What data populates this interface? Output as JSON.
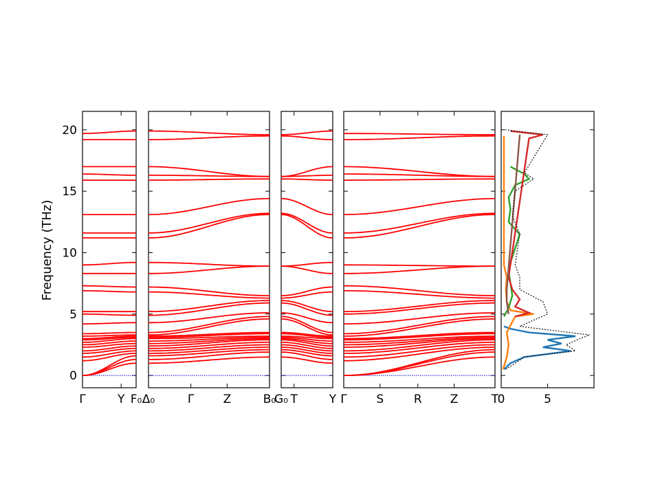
{
  "chart_data": {
    "type": "line",
    "title": "",
    "ylabel": "Frequency (THz)",
    "ylim": [
      -1,
      21.5
    ],
    "yticks": [
      0,
      5,
      10,
      15,
      20
    ],
    "band_color": "#ff0000",
    "zero_line_color": "#0000cc",
    "panels": [
      {
        "xlim": [
          0,
          1
        ],
        "tick_labels": [
          {
            "x": 0,
            "label": "Γ"
          },
          {
            "x": 0.72,
            "label": "Y"
          },
          {
            "x": 1,
            "label": "F₀"
          }
        ],
        "bands_at_start": [
          0.0,
          0.0,
          0.0,
          1.2,
          1.5,
          1.8,
          2.0,
          2.3,
          2.5,
          2.7,
          2.9,
          3.0,
          3.2,
          3.4,
          4.2,
          5.0,
          5.2,
          6.9,
          7.3,
          8.3,
          9.0,
          11.2,
          11.6,
          13.1,
          15.9,
          16.4,
          17.0,
          19.2,
          19.7
        ],
        "bands_at_end": [
          1.0,
          1.3,
          1.6,
          1.8,
          2.0,
          2.2,
          2.4,
          2.6,
          2.8,
          3.0,
          3.1,
          3.2,
          3.3,
          3.5,
          4.3,
          4.9,
          5.2,
          6.8,
          7.2,
          8.3,
          9.2,
          11.2,
          11.6,
          13.1,
          15.9,
          16.3,
          17.0,
          19.2,
          19.9
        ]
      },
      {
        "xlim": [
          0,
          1
        ],
        "tick_labels": [
          {
            "x": 0,
            "label": "Δ₀"
          },
          {
            "x": 0.35,
            "label": "Γ"
          },
          {
            "x": 0.65,
            "label": "Z"
          },
          {
            "x": 1,
            "label": "B₀"
          }
        ],
        "bands_at_start": [
          1.0,
          1.3,
          1.6,
          1.8,
          2.0,
          2.2,
          2.4,
          2.6,
          2.8,
          3.0,
          3.1,
          3.2,
          3.3,
          3.5,
          4.3,
          4.9,
          5.2,
          6.8,
          7.2,
          8.3,
          9.2,
          11.2,
          11.6,
          13.1,
          15.9,
          16.3,
          17.0,
          19.2,
          19.9
        ],
        "bands_at_end": [
          1.5,
          1.9,
          2.1,
          2.3,
          2.5,
          2.7,
          2.9,
          3.0,
          3.1,
          3.2,
          3.4,
          3.5,
          4.6,
          4.8,
          5.1,
          5.9,
          6.1,
          6.3,
          6.5,
          8.9,
          8.9,
          13.1,
          13.2,
          14.4,
          16.0,
          16.2,
          16.2,
          19.5,
          19.6
        ]
      },
      {
        "xlim": [
          0,
          1
        ],
        "tick_labels": [
          {
            "x": 0,
            "label": "G₀"
          },
          {
            "x": 0.25,
            "label": "T"
          },
          {
            "x": 1,
            "label": "Y"
          }
        ],
        "bands_at_start": [
          1.5,
          1.9,
          2.1,
          2.3,
          2.5,
          2.7,
          2.9,
          3.0,
          3.1,
          3.2,
          3.4,
          3.5,
          4.6,
          4.8,
          5.1,
          5.9,
          6.1,
          6.3,
          6.5,
          8.9,
          8.9,
          13.1,
          13.2,
          14.4,
          16.0,
          16.2,
          16.2,
          19.5,
          19.6
        ],
        "bands_at_end": [
          1.0,
          1.3,
          1.6,
          1.8,
          2.0,
          2.2,
          2.4,
          2.6,
          2.8,
          3.0,
          3.1,
          3.2,
          3.3,
          3.5,
          4.3,
          4.9,
          5.2,
          6.8,
          7.2,
          8.3,
          9.2,
          11.2,
          11.6,
          13.1,
          15.9,
          16.3,
          17.0,
          19.2,
          19.9
        ]
      },
      {
        "xlim": [
          0,
          1
        ],
        "tick_labels": [
          {
            "x": 0,
            "label": "Γ"
          },
          {
            "x": 0.24,
            "label": "S"
          },
          {
            "x": 0.49,
            "label": "R"
          },
          {
            "x": 0.73,
            "label": "Z"
          },
          {
            "x": 1,
            "label": "T"
          }
        ],
        "bands_at_start": [
          0.0,
          0.0,
          0.0,
          1.2,
          1.5,
          1.8,
          2.0,
          2.3,
          2.5,
          2.7,
          2.9,
          3.0,
          3.2,
          3.4,
          4.2,
          5.0,
          5.2,
          6.9,
          7.3,
          8.3,
          9.0,
          11.2,
          11.6,
          13.1,
          15.9,
          16.4,
          17.0,
          19.2,
          19.7
        ],
        "bands_at_end": [
          1.5,
          1.9,
          2.1,
          2.3,
          2.5,
          2.7,
          2.9,
          3.0,
          3.1,
          3.2,
          3.4,
          3.5,
          4.6,
          4.8,
          5.1,
          5.9,
          6.1,
          6.3,
          6.5,
          8.9,
          8.9,
          13.1,
          13.2,
          14.4,
          16.0,
          16.2,
          16.2,
          19.5,
          19.6
        ]
      }
    ],
    "dos_panel": {
      "xlim": [
        0,
        10
      ],
      "xticks": [
        0,
        5
      ],
      "series": [
        {
          "color": "#1f77b4",
          "freq": [
            0.5,
            1.0,
            1.5,
            2.0,
            2.3,
            2.6,
            2.9,
            3.2,
            3.5,
            3.8,
            4.0
          ],
          "dos": [
            0.3,
            1.0,
            2.5,
            7.5,
            4.5,
            6.5,
            5.0,
            8.0,
            3.0,
            1.0,
            0.3
          ]
        },
        {
          "color": "#ff7f0e",
          "freq": [
            0.5,
            1.5,
            2.5,
            3.5,
            4.8,
            5.0,
            5.3,
            6.0,
            7.0,
            8.0,
            9.0,
            16.0,
            19.5
          ],
          "dos": [
            0.2,
            0.6,
            0.8,
            0.6,
            1.5,
            3.5,
            1.0,
            0.6,
            0.5,
            0.6,
            0.3,
            0.3,
            0.3
          ]
        },
        {
          "color": "#2ca02c",
          "freq": [
            4.8,
            5.5,
            6.5,
            7.5,
            8.5,
            9.2,
            11.5,
            12.5,
            13.5,
            14.5,
            15.5,
            16.0,
            16.4,
            17.0
          ],
          "dos": [
            0.3,
            0.8,
            1.2,
            1.0,
            0.8,
            1.0,
            2.0,
            0.8,
            1.0,
            0.8,
            1.5,
            3.0,
            2.5,
            1.0
          ]
        },
        {
          "color": "#d62728",
          "freq": [
            4.8,
            5.1,
            5.6,
            6.2,
            7.0,
            8.0,
            19.3,
            19.6,
            19.9
          ],
          "dos": [
            1.5,
            3.0,
            1.5,
            2.0,
            1.2,
            0.8,
            3.0,
            4.5,
            1.0
          ]
        },
        {
          "color": "#8c564b",
          "freq": [
            5.0,
            6.0,
            7.0,
            19.6
          ],
          "dos": [
            0.8,
            0.6,
            0.6,
            2.0
          ]
        },
        {
          "color": "#111111",
          "freq": [
            0.5,
            1.5,
            2.0,
            2.5,
            3.0,
            3.3,
            4.0,
            5.0,
            6.0,
            7.0,
            8.0,
            9.0,
            11.5,
            13.0,
            15.0,
            16.0,
            16.5,
            19.6,
            20.0
          ],
          "dos": [
            0.5,
            2.5,
            8.0,
            7.0,
            8.5,
            9.5,
            2.0,
            5.0,
            4.5,
            2.0,
            2.0,
            1.5,
            2.0,
            1.2,
            1.5,
            3.5,
            2.5,
            5.0,
            0.5
          ]
        }
      ]
    }
  }
}
